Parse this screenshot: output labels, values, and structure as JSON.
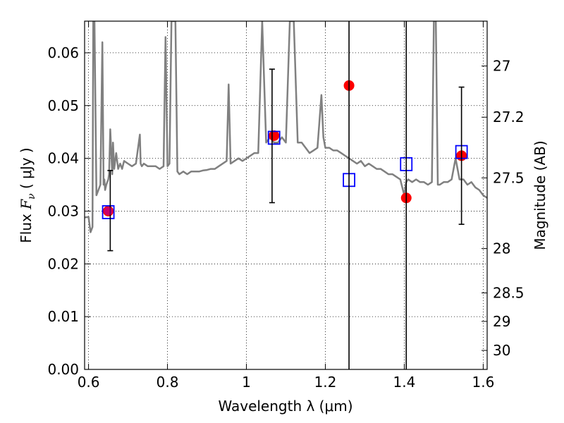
{
  "chart_data": {
    "type": "scatter",
    "xlabel": "Wavelength  λ (μm)",
    "ylabel_left": {
      "prefix": "Flux  ",
      "symbol": "F",
      "subscript": "ν",
      "unit": "  ( μJy )"
    },
    "ylabel_right": "Magnitude (AB)",
    "xlim": [
      0.59,
      1.61
    ],
    "ylim": [
      0.0,
      0.066
    ],
    "grid": true,
    "x_ticks": [
      {
        "value": 0.6,
        "label": "0.6"
      },
      {
        "value": 0.8,
        "label": "0.8"
      },
      {
        "value": 1.0,
        "label": "1"
      },
      {
        "value": 1.2,
        "label": "1.2"
      },
      {
        "value": 1.4,
        "label": "1.4"
      },
      {
        "value": 1.6,
        "label": "1.6"
      }
    ],
    "y_ticks": [
      {
        "value": 0.0,
        "label": "0.00"
      },
      {
        "value": 0.01,
        "label": "0.01"
      },
      {
        "value": 0.02,
        "label": "0.02"
      },
      {
        "value": 0.03,
        "label": "0.03"
      },
      {
        "value": 0.04,
        "label": "0.04"
      },
      {
        "value": 0.05,
        "label": "0.05"
      },
      {
        "value": 0.06,
        "label": "0.06"
      }
    ],
    "magnitude_ticks": [
      {
        "flux": 0.0575,
        "label": "27"
      },
      {
        "flux": 0.0478,
        "label": "27.2"
      },
      {
        "flux": 0.0363,
        "label": "27.5"
      },
      {
        "flux": 0.0229,
        "label": "28"
      },
      {
        "flux": 0.0145,
        "label": "28.5"
      },
      {
        "flux": 0.0091,
        "label": "29"
      },
      {
        "flux": 0.0036,
        "label": "30"
      }
    ],
    "series": [
      {
        "name": "model spectrum",
        "kind": "line",
        "color": "#808080",
        "x": [
          0.59,
          0.6,
          0.605,
          0.61,
          0.612,
          0.615,
          0.62,
          0.625,
          0.63,
          0.635,
          0.638,
          0.64,
          0.642,
          0.645,
          0.65,
          0.652,
          0.655,
          0.66,
          0.662,
          0.665,
          0.67,
          0.675,
          0.68,
          0.685,
          0.69,
          0.7,
          0.71,
          0.72,
          0.73,
          0.732,
          0.735,
          0.74,
          0.75,
          0.76,
          0.77,
          0.78,
          0.79,
          0.795,
          0.8,
          0.805,
          0.81,
          0.815,
          0.82,
          0.825,
          0.83,
          0.84,
          0.85,
          0.86,
          0.87,
          0.88,
          0.89,
          0.9,
          0.91,
          0.92,
          0.93,
          0.94,
          0.95,
          0.955,
          0.96,
          0.97,
          0.98,
          0.99,
          1.0,
          1.01,
          1.02,
          1.03,
          1.04,
          1.05,
          1.06,
          1.07,
          1.08,
          1.09,
          1.1,
          1.11,
          1.12,
          1.13,
          1.14,
          1.15,
          1.16,
          1.17,
          1.18,
          1.19,
          1.195,
          1.2,
          1.21,
          1.22,
          1.23,
          1.24,
          1.25,
          1.26,
          1.27,
          1.28,
          1.29,
          1.3,
          1.31,
          1.32,
          1.33,
          1.34,
          1.35,
          1.36,
          1.37,
          1.38,
          1.39,
          1.4,
          1.405,
          1.41,
          1.42,
          1.43,
          1.44,
          1.45,
          1.46,
          1.47,
          1.475,
          1.48,
          1.485,
          1.49,
          1.5,
          1.51,
          1.52,
          1.53,
          1.54,
          1.55,
          1.56,
          1.57,
          1.58,
          1.59,
          1.6,
          1.61
        ],
        "y": [
          0.0288,
          0.0289,
          0.026,
          0.027,
          0.066,
          0.066,
          0.033,
          0.034,
          0.035,
          0.062,
          0.035,
          0.036,
          0.034,
          0.035,
          0.036,
          0.037,
          0.0455,
          0.037,
          0.043,
          0.038,
          0.041,
          0.038,
          0.039,
          0.038,
          0.0395,
          0.039,
          0.0385,
          0.039,
          0.0445,
          0.039,
          0.0385,
          0.039,
          0.0385,
          0.0385,
          0.0385,
          0.038,
          0.0385,
          0.063,
          0.0385,
          0.039,
          0.066,
          0.066,
          0.066,
          0.0375,
          0.037,
          0.0375,
          0.037,
          0.0375,
          0.0375,
          0.0375,
          0.0377,
          0.0378,
          0.038,
          0.038,
          0.0385,
          0.039,
          0.0395,
          0.054,
          0.039,
          0.0395,
          0.04,
          0.0395,
          0.04,
          0.0405,
          0.041,
          0.041,
          0.066,
          0.043,
          0.044,
          0.043,
          0.043,
          0.044,
          0.043,
          0.066,
          0.066,
          0.043,
          0.043,
          0.042,
          0.041,
          0.0415,
          0.042,
          0.052,
          0.044,
          0.042,
          0.042,
          0.0415,
          0.0415,
          0.041,
          0.0405,
          0.04,
          0.0395,
          0.039,
          0.0395,
          0.0385,
          0.039,
          0.0385,
          0.038,
          0.038,
          0.0375,
          0.037,
          0.037,
          0.0365,
          0.036,
          0.033,
          0.0355,
          0.036,
          0.0355,
          0.036,
          0.0355,
          0.0355,
          0.035,
          0.0355,
          0.066,
          0.066,
          0.035,
          0.035,
          0.0355,
          0.0355,
          0.036,
          0.04,
          0.036,
          0.036,
          0.035,
          0.0355,
          0.0345,
          0.034,
          0.033,
          0.0325
        ]
      },
      {
        "name": "observed photometry",
        "kind": "points",
        "marker": "circle",
        "color": "#ff0000",
        "x": [
          0.65,
          1.07,
          1.26,
          1.405,
          1.545
        ],
        "y": [
          0.03,
          0.0443,
          0.0538,
          0.0325,
          0.0405
        ]
      },
      {
        "name": "model photometry",
        "kind": "points",
        "marker": "open-square",
        "color": "#0000ff",
        "x": [
          0.65,
          1.07,
          1.26,
          1.405,
          1.545
        ],
        "y": [
          0.0298,
          0.0439,
          0.0359,
          0.0389,
          0.0412
        ]
      },
      {
        "name": "error bars",
        "kind": "errorbar",
        "color": "#000000",
        "x": [
          0.655,
          1.065,
          1.26,
          1.405,
          1.545
        ],
        "y_low": [
          0.0225,
          0.0316,
          0.0,
          0.0,
          0.0275
        ],
        "y_high": [
          0.0377,
          0.0569,
          0.066,
          0.066,
          0.0535
        ],
        "capped": [
          true,
          true,
          false,
          false,
          true
        ]
      }
    ]
  }
}
